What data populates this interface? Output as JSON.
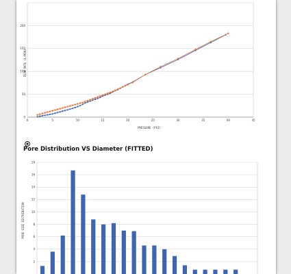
{
  "colors": {
    "series_blue": "#3a5fb8",
    "series_orange": "#e8793a",
    "bar_blue": "#3e64b4",
    "grid": "#d6d6d6"
  },
  "section2": {
    "title": "Pore Distribution VS Diameter (FITTED)",
    "icon": "target-icon"
  },
  "chart_data": [
    {
      "type": "line",
      "title": "",
      "xlabel": "PRESSURE (PSI)",
      "ylabel": "FLOW RATE (L/MIN)",
      "xlim": [
        0,
        45
      ],
      "ylim": [
        0,
        250
      ],
      "x_ticks": [
        0,
        5,
        10,
        15,
        20,
        25,
        30,
        35,
        40,
        45
      ],
      "y_ticks": [
        0,
        50,
        100,
        150,
        200
      ],
      "grid": true,
      "series": [
        {
          "color": "#3a5fb8",
          "marker": "circle",
          "x": [
            2,
            2.5,
            3,
            3.5,
            4,
            4.5,
            5,
            5.5,
            6,
            6.5,
            7,
            7.5,
            8,
            8.5,
            9,
            9.5,
            10,
            10.5,
            11,
            11.5,
            12,
            12.5,
            13,
            13.5,
            14,
            14.5,
            15,
            15.5,
            16,
            16.5,
            17,
            17.5,
            18,
            18.5,
            19,
            19.5,
            20,
            21,
            23.5,
            26.5,
            30,
            33.5,
            36.5,
            39.5
          ],
          "y": [
            1,
            2,
            3,
            4,
            5,
            6,
            7,
            8.5,
            10,
            11.5,
            13,
            14.5,
            16,
            17.5,
            19,
            21,
            23,
            25,
            28,
            31,
            33,
            35,
            37,
            39,
            41,
            43,
            46,
            48,
            50,
            52,
            55,
            58,
            60,
            63,
            66,
            69,
            72,
            77,
            93,
            108,
            126,
            146,
            163,
            180
          ]
        },
        {
          "color": "#e8793a",
          "marker": "square",
          "x": [
            2,
            2.5,
            3,
            3.5,
            4,
            4.5,
            5,
            5.5,
            6,
            6.5,
            7,
            7.5,
            8,
            8.5,
            9,
            9.5,
            10,
            10.5,
            11,
            11.5,
            12,
            12.5,
            13,
            13.5,
            14,
            14.5,
            15,
            15.5,
            16,
            16.5,
            17,
            17.5,
            18,
            18.5,
            19,
            19.5,
            20,
            21,
            23.5,
            26.5,
            30,
            33.5,
            36.5,
            40
          ],
          "y": [
            5,
            6.5,
            8,
            9.5,
            11,
            12.5,
            14,
            15.5,
            17,
            18.5,
            20,
            21.5,
            23,
            24.5,
            26,
            27.5,
            29,
            30.5,
            32,
            34,
            36,
            38,
            40,
            42,
            44,
            46,
            48,
            50,
            52,
            54,
            56,
            58.5,
            61,
            63.5,
            66,
            68.5,
            71,
            76,
            93,
            110,
            128,
            148,
            165,
            183
          ]
        }
      ]
    },
    {
      "type": "bar",
      "title": "Pore Distribution VS Diameter (FITTED)",
      "xlabel": "",
      "ylabel": "PORE SIZE DISTRIBUTION",
      "ylim": [
        0,
        18
      ],
      "y_ticks": [
        2,
        4,
        6,
        8,
        10,
        12,
        14,
        16,
        18
      ],
      "grid": true,
      "values": [
        1.3,
        3.6,
        6.2,
        16.7,
        12.8,
        8.8,
        8.0,
        8.2,
        7.0,
        6.9,
        4.6,
        4.6,
        4.0,
        2.9,
        1.4,
        0.7,
        0.7,
        0.7,
        0.7,
        0.7
      ]
    }
  ]
}
